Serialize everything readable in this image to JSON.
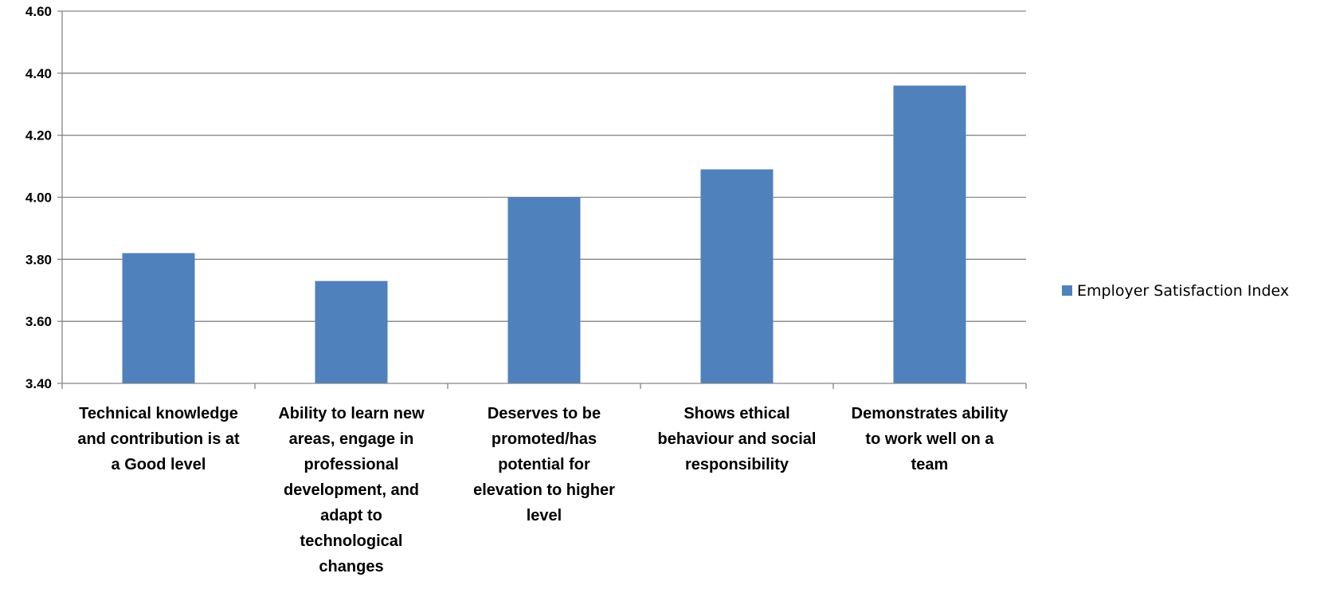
{
  "chart_data": {
    "type": "bar",
    "categories": [
      "Technical knowledge and contribution is at a Good level",
      "Ability to learn new areas, engage in professional development, and adapt to technological changes",
      "Deserves to be promoted/has potential for elevation to higher level",
      "Shows ethical behaviour and social responsibility",
      "Demonstrates ability to work well on a team"
    ],
    "category_lines": [
      [
        "Technical knowledge",
        "and contribution is at",
        "a Good level"
      ],
      [
        "Ability to learn new",
        "areas, engage in",
        "professional",
        "development, and",
        "adapt to",
        "technological",
        "changes"
      ],
      [
        "Deserves to be",
        "promoted/has",
        "potential for",
        "elevation to higher",
        "level"
      ],
      [
        "Shows ethical",
        "behaviour and social",
        "responsibility"
      ],
      [
        "Demonstrates ability",
        "to work well on a",
        "team"
      ]
    ],
    "series": [
      {
        "name": "Employer Satisfaction Index",
        "values": [
          3.82,
          3.73,
          4.0,
          4.09,
          4.36
        ],
        "color": "#4F81BD"
      }
    ],
    "ylim": [
      3.4,
      4.6
    ],
    "yticks": [
      "3.40",
      "3.60",
      "3.80",
      "4.00",
      "4.20",
      "4.40",
      "4.60"
    ],
    "grid": true,
    "legend_position": "right",
    "title": "",
    "xlabel": "",
    "ylabel": ""
  }
}
